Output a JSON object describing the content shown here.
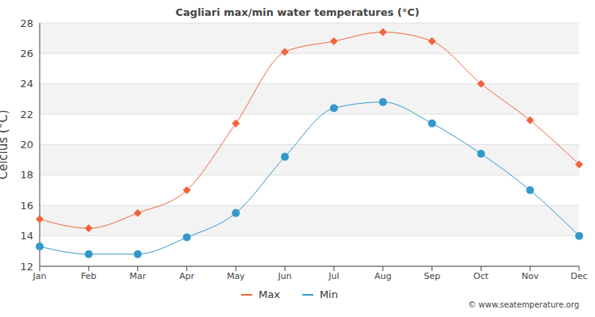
{
  "chart_data": {
    "type": "line",
    "title": "Cagliari max/min water temperatures (°C)",
    "y_label": "Celcius (°C)",
    "annotations": [
      "© www.seatemperature.org"
    ],
    "categories": [
      "Jan",
      "Feb",
      "Mar",
      "Apr",
      "May",
      "Jun",
      "Jul",
      "Aug",
      "Sep",
      "Oct",
      "Nov",
      "Dec"
    ],
    "series": [
      {
        "name": "Max",
        "color": "#f0643c",
        "marker": "diamond",
        "line_style": "solid",
        "values": [
          15.1,
          14.5,
          15.5,
          17.0,
          21.4,
          26.1,
          26.8,
          27.4,
          26.8,
          24.0,
          21.6,
          18.7
        ]
      },
      {
        "name": "Min",
        "color": "#3399cc",
        "marker": "circle",
        "line_style": "solid",
        "values": [
          13.3,
          12.8,
          12.8,
          13.9,
          15.5,
          19.2,
          22.4,
          22.8,
          21.4,
          19.4,
          17.0,
          14.0
        ]
      }
    ],
    "ylim": [
      12,
      28
    ],
    "yticks": [
      12,
      14,
      16,
      18,
      20,
      22,
      24,
      26,
      28
    ],
    "grid": true,
    "legend": "bottom"
  }
}
